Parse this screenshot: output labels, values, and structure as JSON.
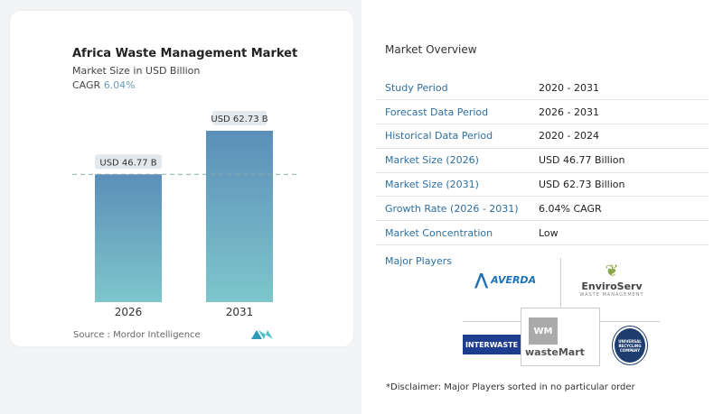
{
  "chart_data": {
    "type": "bar",
    "title": "Africa Waste Management Market",
    "subtitle": "Market Size in USD Billion",
    "cagr_label": "CAGR",
    "cagr_value": "6.04%",
    "categories": [
      "2026",
      "2031"
    ],
    "values": [
      46.77,
      62.73
    ],
    "data_labels": [
      "USD 46.77 B",
      "USD 62.73 B"
    ],
    "colors": [
      "#5b8fb8",
      "#7ec6cc"
    ],
    "reference_line": "dashed at 2026 value",
    "source": "Source :  Mordor Intelligence"
  },
  "overview": {
    "title": "Market Overview",
    "rows": [
      {
        "k": "Study Period",
        "v": "2020 - 2031"
      },
      {
        "k": "Forecast Data Period",
        "v": "2026 - 2031"
      },
      {
        "k": "Historical Data Period",
        "v": "2020 - 2024"
      },
      {
        "k": "Market Size (2026)",
        "v": "USD 46.77 Billion"
      },
      {
        "k": "Market Size (2031)",
        "v": "USD 62.73 Billion"
      },
      {
        "k": "Growth Rate (2026 - 2031)",
        "v": "6.04% CAGR"
      },
      {
        "k": "Market Concentration",
        "v": "Low"
      }
    ]
  },
  "players": {
    "title": "Major Players",
    "logos": [
      "AVERDA",
      "EnviroServ",
      "WASTE MANAGEMENT",
      "INTERWASTE",
      "WM",
      "wasteMart",
      "UNIVERSAL RECYCLING COMPANY"
    ]
  },
  "disclaimer": "*Disclaimer: Major Players sorted in no particular order"
}
